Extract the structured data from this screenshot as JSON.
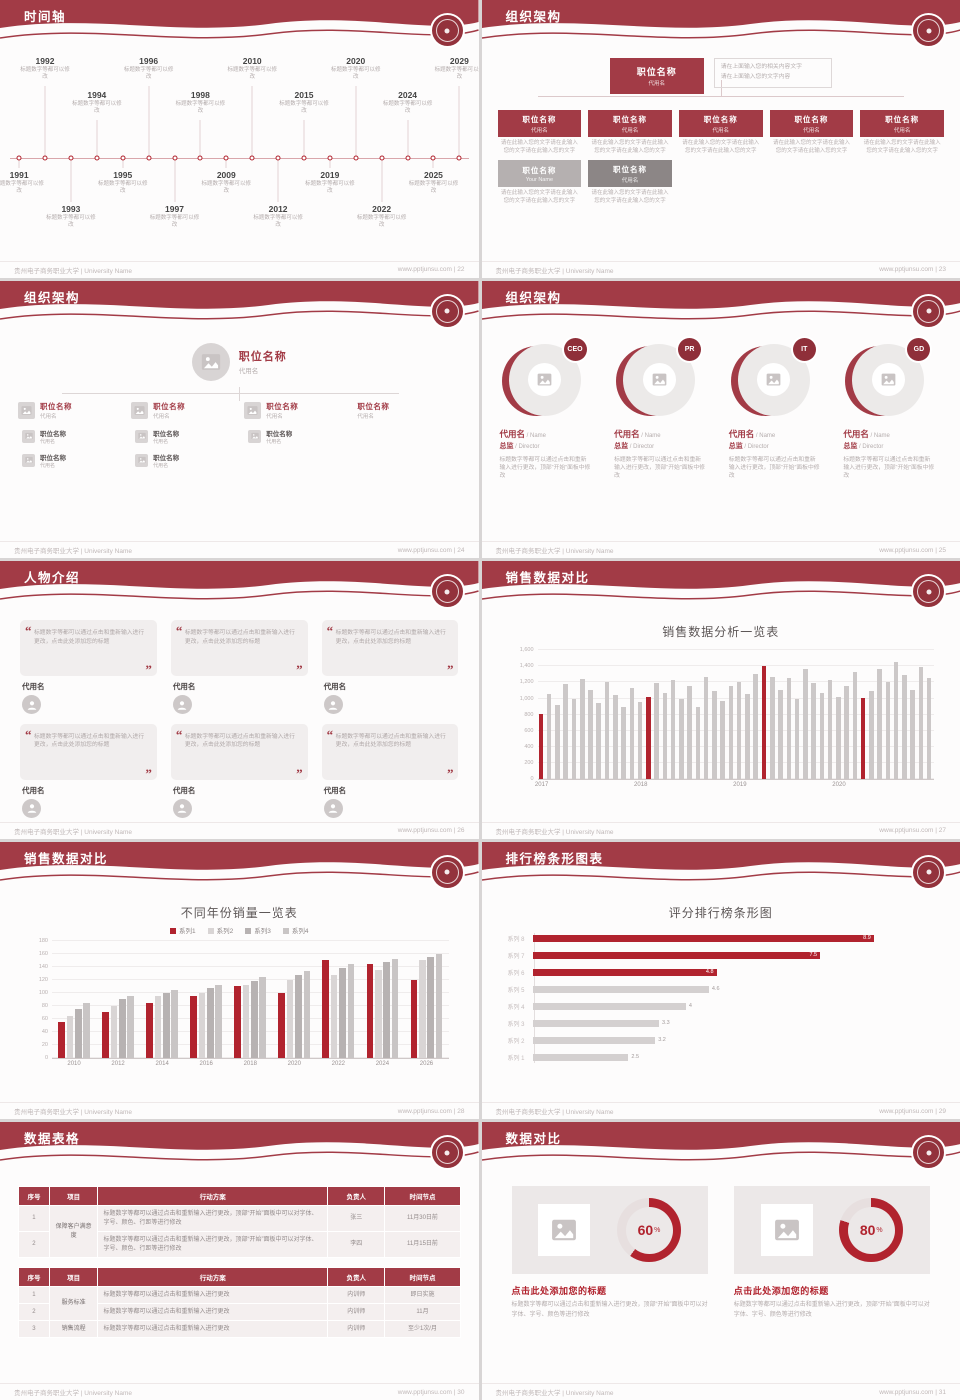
{
  "global": {
    "footer_left": "贵州电子商务职业大学 | University Name",
    "footer_site": "www.pptjunsu.com",
    "colors": {
      "header_red": "#a23b46",
      "accent_red": "#b1232e",
      "bar_gray": "#ccc8c8"
    }
  },
  "slides": [
    {
      "title": "时间轴",
      "page": "22",
      "footer_right": "www.pptjunsu.com | 22",
      "timeline": {
        "item_desc": "标题数字等都可以修改",
        "items": [
          {
            "year": "1991",
            "side": "down",
            "level": 1
          },
          {
            "year": "1992",
            "side": "up",
            "level": 1
          },
          {
            "year": "1993",
            "side": "down",
            "level": 2
          },
          {
            "year": "1994",
            "side": "up",
            "level": 2
          },
          {
            "year": "1995",
            "side": "down",
            "level": 1
          },
          {
            "year": "1996",
            "side": "up",
            "level": 1
          },
          {
            "year": "1997",
            "side": "down",
            "level": 2
          },
          {
            "year": "1998",
            "side": "up",
            "level": 2
          },
          {
            "year": "2009",
            "side": "down",
            "level": 1
          },
          {
            "year": "2010",
            "side": "up",
            "level": 1
          },
          {
            "year": "2012",
            "side": "down",
            "level": 2
          },
          {
            "year": "2015",
            "side": "up",
            "level": 2
          },
          {
            "year": "2019",
            "side": "down",
            "level": 1
          },
          {
            "year": "2020",
            "side": "up",
            "level": 1
          },
          {
            "year": "2022",
            "side": "down",
            "level": 2
          },
          {
            "year": "2024",
            "side": "up",
            "level": 2
          },
          {
            "year": "2025",
            "side": "down",
            "level": 1
          },
          {
            "year": "2029",
            "side": "up",
            "level": 1
          }
        ]
      }
    },
    {
      "title": "组织架构",
      "page": "23",
      "footer_right": "www.pptjunsu.com | 23",
      "org": {
        "top": {
          "title": "职位名称",
          "sub": "代用名"
        },
        "note_lines": [
          "请在上面输入您的相关内容文字",
          "请在上面输入您的文字内容"
        ],
        "desc": "请在此输入您的文字请在此输入您的文字请在此输入您的文字",
        "row1": [
          {
            "title": "职位名称",
            "sub": "代用名"
          },
          {
            "title": "职位名称",
            "sub": "代用名"
          },
          {
            "title": "职位名称",
            "sub": "代用名"
          },
          {
            "title": "职位名称",
            "sub": "代用名"
          },
          {
            "title": "职位名称",
            "sub": "代用名"
          }
        ],
        "row2": [
          {
            "title": "职位名称",
            "sub": "Your Name",
            "variant": "light"
          },
          {
            "title": "职位名称",
            "sub": "代用名",
            "variant": "dark"
          }
        ]
      }
    },
    {
      "title": "组织架构",
      "page": "24",
      "footer_right": "www.pptjunsu.com | 24",
      "tree": {
        "root": {
          "title": "职位名称",
          "sub": "代用名"
        },
        "branches": [
          {
            "title": "职位名称",
            "sub": "代用名",
            "icon": true,
            "children": [
              {
                "title": "职位名称",
                "sub": "代用名"
              },
              {
                "title": "职位名称",
                "sub": "代用名"
              }
            ]
          },
          {
            "title": "职位名称",
            "sub": "代用名",
            "icon": true,
            "children": [
              {
                "title": "职位名称",
                "sub": "代用名"
              },
              {
                "title": "职位名称",
                "sub": "代用名"
              }
            ]
          },
          {
            "title": "职位名称",
            "sub": "代用名",
            "icon": true,
            "children": [
              {
                "title": "职位名称",
                "sub": "代用名"
              }
            ]
          },
          {
            "title": "职位名称",
            "sub": "代用名",
            "icon": false,
            "children": []
          }
        ]
      }
    },
    {
      "title": "组织架构",
      "page": "25",
      "footer_right": "www.pptjunsu.com | 25",
      "profiles": {
        "badges": [
          "CEO",
          "PR",
          "IT",
          "GD"
        ],
        "name": "代用名",
        "name_suffix": "/ Name",
        "role": "总监",
        "role_suffix": "/ Director",
        "desc": "标题数字等都可以通过点击和重新输入进行更改，顶部“开始”面板中修改"
      }
    },
    {
      "title": "人物介绍",
      "page": "26",
      "footer_right": "www.pptjunsu.com | 26",
      "persons": {
        "cards": [
          {
            "name": "代用名",
            "text": "标题数字等都可以通过点击和重新输入进行更改，点击此处添加您的标题"
          },
          {
            "name": "代用名",
            "text": "标题数字等都可以通过点击和重新输入进行更改，点击此处添加您的标题"
          },
          {
            "name": "代用名",
            "text": "标题数字等都可以通过点击和重新输入进行更改，点击此处添加您的标题"
          },
          {
            "name": "代用名",
            "text": "标题数字等都可以通过点击和重新输入进行更改，点击此处添加您的标题"
          },
          {
            "name": "代用名",
            "text": "标题数字等都可以通过点击和重新输入进行更改，点击此处添加您的标题"
          },
          {
            "name": "代用名",
            "text": "标题数字等都可以通过点击和重新输入进行更改，点击此处添加您的标题"
          }
        ]
      }
    },
    {
      "title": "销售数据对比",
      "page": "27",
      "footer_right": "www.pptjunsu.com | 27",
      "chart_ref": 0
    },
    {
      "title": "销售数据对比",
      "page": "28",
      "footer_right": "www.pptjunsu.com | 28",
      "chart_ref": 1
    },
    {
      "title": "排行榜条形图表",
      "page": "29",
      "footer_right": "www.pptjunsu.com | 29",
      "chart_ref": 2
    },
    {
      "title": "数据表格",
      "page": "30",
      "footer_right": "www.pptjunsu.com | 30",
      "tables": {
        "table1": {
          "headers": [
            "序号",
            "项目",
            "行动方案",
            "负责人",
            "时间节点"
          ],
          "widths": [
            "7%",
            "11%",
            "52%",
            "13%",
            "17%"
          ],
          "rows": [
            [
              {
                "t": "1"
              },
              {
                "t": "保障客户满意度",
                "rowspan": 2,
                "cls": "proj"
              },
              {
                "t": "标题数字等都可以通过点击和重新输入进行更改，顶部“开始”面板中可以对字体、字号、颜色、行距等进行修改",
                "cls": "plan"
              },
              {
                "t": "张三"
              },
              {
                "t": "11月30日前"
              }
            ],
            [
              {
                "t": "2"
              },
              {
                "t": "标题数字等都可以通过点击和重新输入进行更改，顶部“开始”面板中可以对字体、字号、颜色、行距等进行修改",
                "cls": "plan"
              },
              {
                "t": "李四"
              },
              {
                "t": "11月15日前"
              }
            ]
          ]
        },
        "table2": {
          "headers": [
            "序号",
            "项目",
            "行动方案",
            "负责人",
            "时间节点"
          ],
          "widths": [
            "7%",
            "11%",
            "52%",
            "13%",
            "17%"
          ],
          "rows": [
            [
              {
                "t": "1"
              },
              {
                "t": "服务标准",
                "rowspan": 2,
                "cls": "proj"
              },
              {
                "t": "标题数字等都可以通过点击和重新输入进行更改",
                "cls": "plan"
              },
              {
                "t": "内训师"
              },
              {
                "t": "即日实施"
              }
            ],
            [
              {
                "t": "2"
              },
              {
                "t": "标题数字等都可以通过点击和重新输入进行更改",
                "cls": "plan"
              },
              {
                "t": "内训师"
              },
              {
                "t": "11月"
              }
            ],
            [
              {
                "t": "3"
              },
              {
                "t": "销售流程",
                "cls": "proj"
              },
              {
                "t": "标题数字等都可以通过点击和重新输入进行更改",
                "cls": "plan"
              },
              {
                "t": "内训师"
              },
              {
                "t": "至少1次/月"
              }
            ]
          ]
        }
      }
    },
    {
      "title": "数据对比",
      "page": "31",
      "footer_right": "www.pptjunsu.com | 31",
      "chart_ref": 3,
      "compare": {
        "cards": [
          {
            "percent_label": "60",
            "title": "点击此处添加您的标题",
            "desc": "标题数字等都可以通过点击和重新输入进行更改，顶部“开始”面板中可以对字体、字号、颜色等进行修改"
          },
          {
            "percent_label": "80",
            "title": "点击此处添加您的标题",
            "desc": "标题数字等都可以通过点击和重新输入进行更改，顶部“开始”面板中可以对字体、字号、颜色等进行修改"
          }
        ]
      }
    }
  ],
  "chart_data": [
    {
      "type": "bar",
      "title": "销售数据分析一览表",
      "x_groups": [
        "2017",
        "2018",
        "2019",
        "2020"
      ],
      "values": [
        810,
        1060,
        920,
        1180,
        1000,
        1240,
        1100,
        950,
        1210,
        1040,
        900,
        1130,
        960,
        1020,
        1190,
        1070,
        1230,
        990,
        1160,
        900,
        1270,
        1090,
        970,
        1150,
        1210,
        1060,
        1310,
        1400,
        1270,
        1110,
        1250,
        990,
        1370,
        1190,
        1070,
        1230,
        1020,
        1160,
        1330,
        1010,
        1090,
        1370,
        1210,
        1450,
        1290,
        1110,
        1390,
        1260
      ],
      "highlight_indices": [
        0,
        13,
        27,
        39
      ],
      "ylim": [
        0,
        1600
      ],
      "ytick_labels": [
        "0",
        "200",
        "400",
        "600",
        "800",
        "1,000",
        "1,200",
        "1,400",
        "1,600"
      ],
      "bar_color": "#ccc8c8",
      "highlight_color": "#b1232e"
    },
    {
      "type": "bar",
      "title": "不同年份销量一览表",
      "categories": [
        "2010",
        "2012",
        "2014",
        "2016",
        "2018",
        "2020",
        "2022",
        "2024",
        "2026"
      ],
      "series": [
        {
          "name": "系列1",
          "color": "#b1232e",
          "values": [
            55,
            70,
            85,
            95,
            110,
            100,
            150,
            145,
            120
          ]
        },
        {
          "name": "系列2",
          "color": "#d9d5d5",
          "values": [
            65,
            80,
            95,
            100,
            112,
            120,
            128,
            135,
            150
          ]
        },
        {
          "name": "系列3",
          "color": "#b7b2b2",
          "values": [
            75,
            90,
            100,
            108,
            118,
            128,
            138,
            148,
            155
          ]
        },
        {
          "name": "系列4",
          "color": "#c9c5c5",
          "values": [
            85,
            95,
            105,
            112,
            124,
            134,
            144,
            152,
            160
          ]
        }
      ],
      "ylim": [
        0,
        180
      ],
      "ytick_labels": [
        "0",
        "20",
        "40",
        "60",
        "80",
        "100",
        "120",
        "140",
        "160",
        "180"
      ],
      "legend_position": "top"
    },
    {
      "type": "bar",
      "orientation": "horizontal",
      "title": "评分排行榜条形图",
      "categories": [
        "系列 8",
        "系列 7",
        "系列 6",
        "系列 5",
        "系列 4",
        "系列 3",
        "系列 2",
        "系列 1"
      ],
      "values": [
        8.9,
        7.5,
        4.8,
        4.6,
        4,
        3.3,
        3.2,
        2.5
      ],
      "value_labels": [
        "8.9",
        "7.5",
        "4.8",
        "4.6",
        "4",
        "3.3",
        "3.2",
        "2.5"
      ],
      "highlight_count": 3,
      "xlim": [
        0,
        10
      ],
      "bar_color": "#d4d0d0",
      "highlight_color": "#b1232e"
    },
    {
      "type": "pie",
      "style": "donut",
      "items": [
        {
          "percent": 60,
          "label": "60%"
        },
        {
          "percent": 80,
          "label": "80%"
        }
      ],
      "arc_color": "#b1232e",
      "track_color": "#e7dfdf"
    }
  ]
}
